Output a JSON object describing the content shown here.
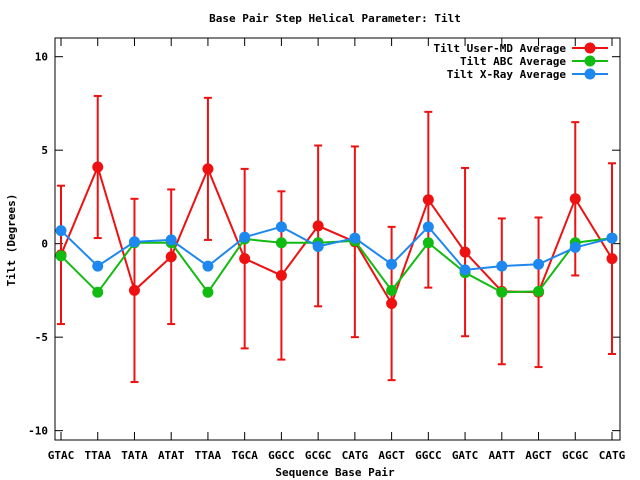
{
  "chart_data": {
    "type": "line",
    "title": "Base Pair Step Helical Parameter: Tilt",
    "xlabel": "Sequence Base Pair",
    "ylabel": "Tilt (Degrees)",
    "ylim": [
      -10.5,
      11
    ],
    "yticks": [
      -10,
      -5,
      0,
      5,
      10
    ],
    "categories": [
      "GTAC",
      "TTAA",
      "TATA",
      "ATAT",
      "TTAA",
      "TGCA",
      "GGCC",
      "GCGC",
      "CATG",
      "AGCT",
      "GGCC",
      "GATC",
      "AATT",
      "AGCT",
      "GCGC",
      "CATG"
    ],
    "legend_position": "top-right",
    "grid": false,
    "series": [
      {
        "name": "Tilt User-MD Average",
        "color": "#ee1111",
        "values": [
          -0.6,
          4.1,
          -2.5,
          -0.7,
          4.0,
          -0.8,
          -1.7,
          0.95,
          0.1,
          -3.2,
          2.35,
          -0.45,
          -2.55,
          -2.6,
          2.4,
          -0.8
        ],
        "errors": [
          3.7,
          3.8,
          4.9,
          3.6,
          3.8,
          4.8,
          4.5,
          4.3,
          5.1,
          4.1,
          4.7,
          4.5,
          3.9,
          4.0,
          4.1,
          5.1
        ]
      },
      {
        "name": "Tilt ABC Average",
        "color": "#11bb11",
        "values": [
          -0.65,
          -2.6,
          0.05,
          0.05,
          -2.6,
          0.25,
          0.05,
          0.05,
          0.15,
          -2.5,
          0.05,
          -1.55,
          -2.6,
          -2.55,
          0.05,
          0.3
        ]
      },
      {
        "name": "Tilt X-Ray Average",
        "color": "#1e88ee",
        "values": [
          0.7,
          -1.2,
          0.1,
          0.2,
          -1.2,
          0.35,
          0.9,
          -0.15,
          0.3,
          -1.1,
          0.9,
          -1.4,
          -1.2,
          -1.1,
          -0.2,
          0.3
        ]
      }
    ]
  }
}
